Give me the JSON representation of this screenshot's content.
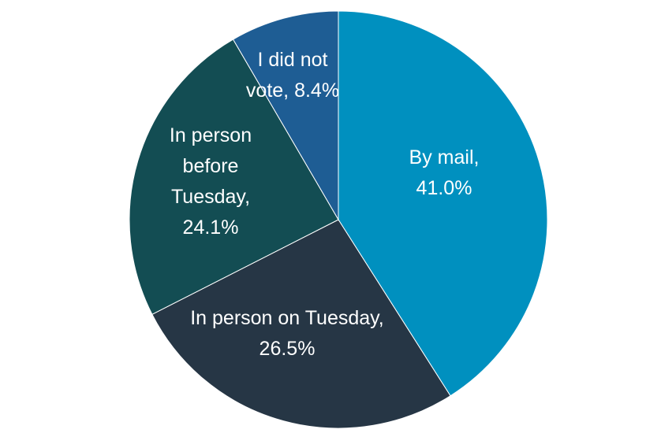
{
  "chart_data": {
    "type": "pie",
    "title": "",
    "slices": [
      {
        "label": "By mail,",
        "value": 41.0,
        "value_label": "41.0%",
        "color": "#0090BF"
      },
      {
        "label": "In person on Tuesday,",
        "value": 26.5,
        "value_label": "26.5%",
        "color": "#263645"
      },
      {
        "label": "In person before Tuesday,",
        "value": 24.1,
        "value_label": "24.1%",
        "color": "#134D53"
      },
      {
        "label": "I did not vote,",
        "value": 8.4,
        "value_label": "8.4%",
        "color": "#1E5D94"
      }
    ],
    "start": "top",
    "direction": "clockwise",
    "legend": "none",
    "label_placement": "inside"
  }
}
